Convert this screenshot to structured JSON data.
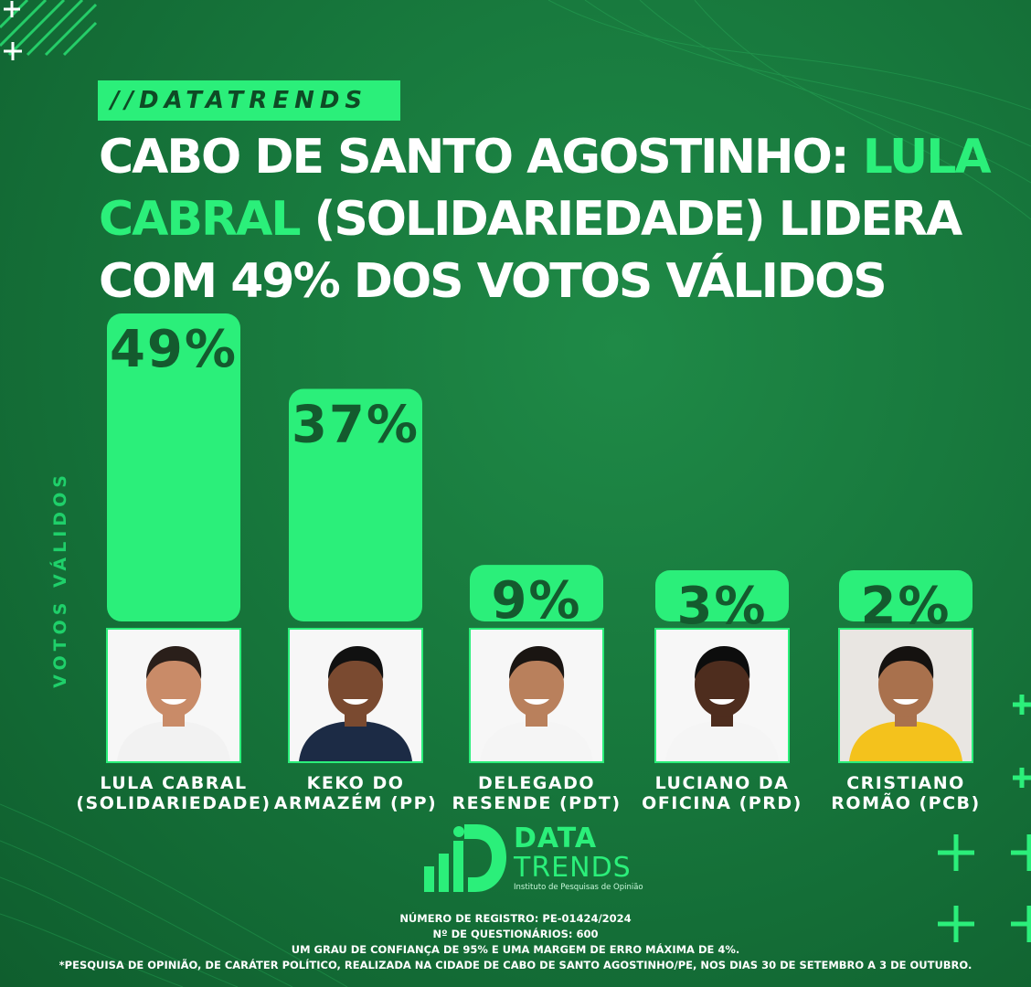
{
  "tag": "//DATATRENDS",
  "headline": {
    "line1_white": "CABO DE SANTO AGOSTINHO: ",
    "line1_green": "LULA",
    "line2_green": "CABRAL",
    "line2_white": " (SOLIDARIEDADE) LIDERA",
    "line3_white": "COM 49% DOS VOTOS VÁLIDOS"
  },
  "colors": {
    "background": "#17773c",
    "accent": "#2bef7a",
    "value_text": "#145a2e"
  },
  "chart_data": {
    "type": "bar",
    "ylabel": "VOTOS VÁLIDOS",
    "categories": [
      "LULA CABRAL (SOLIDARIEDADE)",
      "KEKO DO ARMAZÉM (PP)",
      "DELEGADO RESENDE (PDT)",
      "LUCIANO DA OFICINA (PRD)",
      "CRISTIANO ROMÃO (PCB)"
    ],
    "values": [
      49,
      37,
      9,
      3,
      2
    ],
    "value_labels": [
      "49%",
      "37%",
      "9%",
      "3%",
      "2%"
    ],
    "ylim": [
      0,
      49
    ]
  },
  "candidates": [
    {
      "line1": "LULA CABRAL",
      "line2": "(SOLIDARIEDADE)",
      "shirt": "#f2f2f2",
      "skin": "#c98b68",
      "hair": "#2a1f1a"
    },
    {
      "line1": "KEKO DO",
      "line2": "ARMAZÉM (PP)",
      "shirt": "#1c2b45",
      "skin": "#7a4a30",
      "hair": "#111111"
    },
    {
      "line1": "DELEGADO",
      "line2": "RESENDE (PDT)",
      "shirt": "#f5f5f5",
      "skin": "#b9805c",
      "hair": "#1a1512"
    },
    {
      "line1": "LUCIANO DA",
      "line2": "OFICINA (PRD)",
      "shirt": "#f5f5f5",
      "skin": "#4e2d1e",
      "hair": "#0d0d0d"
    },
    {
      "line1": "CRISTIANO",
      "line2": "ROMÃO (PCB)",
      "shirt": "#f4c21c",
      "skin": "#a9714d",
      "hair": "#151210"
    }
  ],
  "logo": {
    "line1": "DATA",
    "line2": "TRENDS",
    "subtitle": "Instituto de Pesquisas de Opinião"
  },
  "footer": {
    "registro": "NÚMERO DE REGISTRO: PE-01424/2024",
    "questionarios": "Nº DE QUESTIONÁRIOS: 600",
    "confianca": "UM GRAU DE CONFIANÇA DE 95% E UMA MARGEM DE ERRO MÁXIMA DE 4%.",
    "pesquisa": "*PESQUISA DE OPINIÃO, DE CARÁTER POLÍTICO, REALIZADA NA CIDADE DE CABO DE SANTO AGOSTINHO/PE, NOS DIAS 30 DE SETEMBRO A 3 DE OUTUBRO."
  }
}
